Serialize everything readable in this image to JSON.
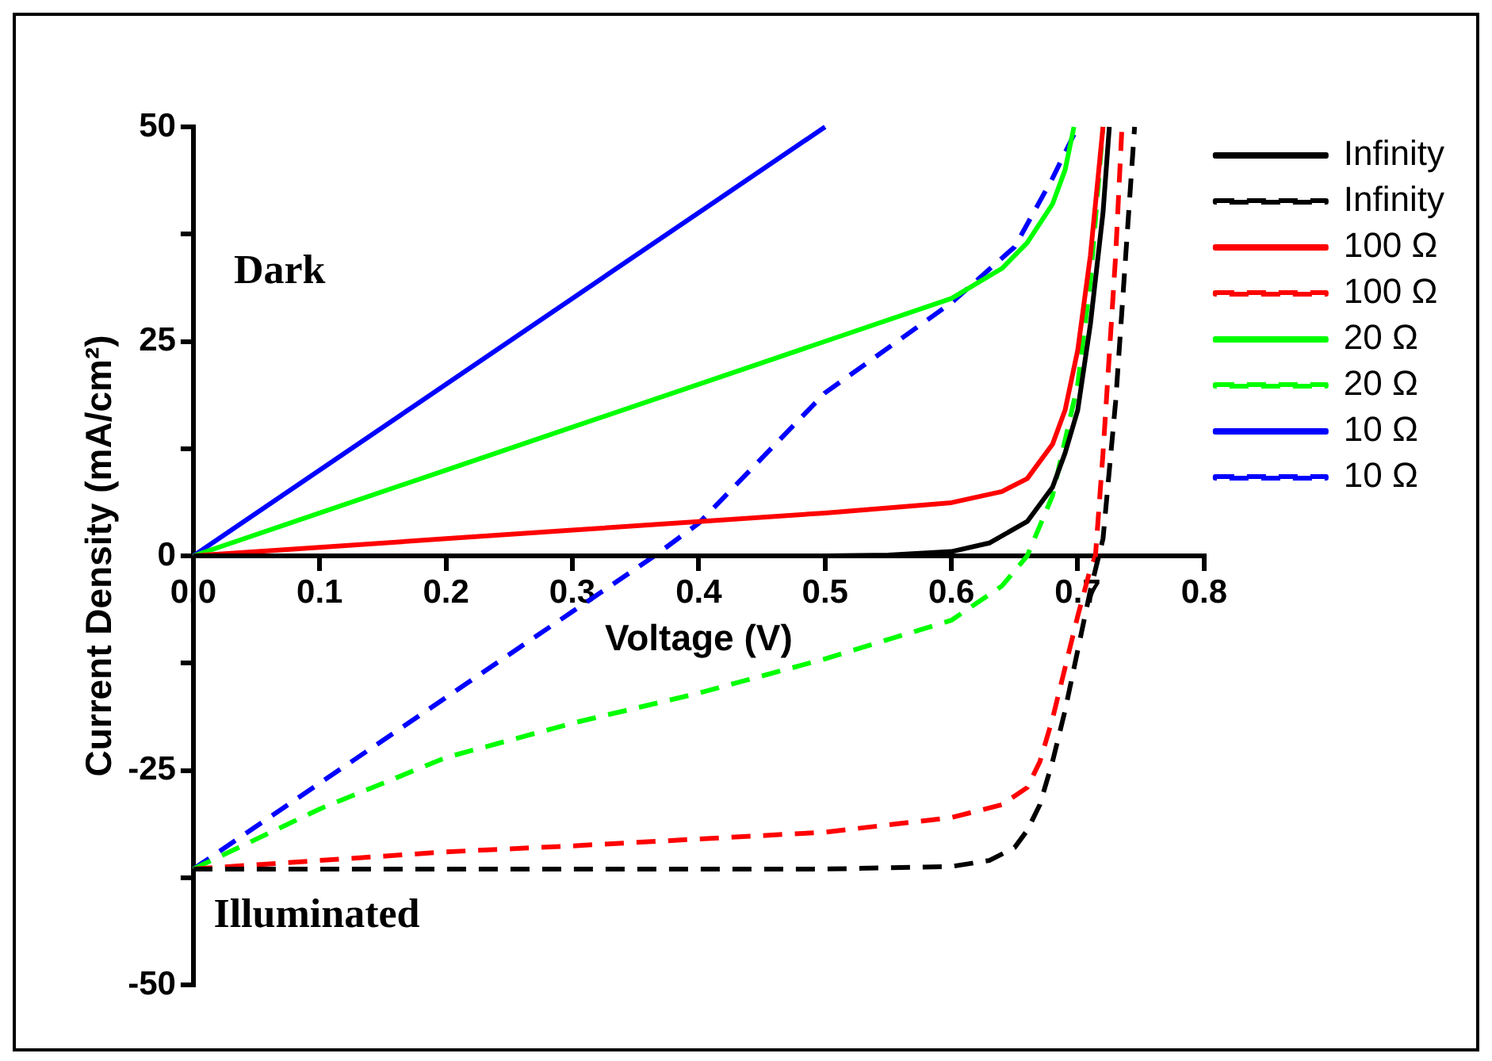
{
  "chart_data": {
    "type": "line",
    "xlabel": "Voltage (V)",
    "ylabel": "Current Density (mA/cm²)",
    "annotations": [
      "Dark",
      "Illuminated"
    ],
    "xlim": [
      0,
      0.8
    ],
    "ylim": [
      -50,
      50
    ],
    "xticks": [
      {
        "value": 0,
        "label": "0.0"
      },
      0.1,
      0.2,
      0.3,
      0.4,
      0.5,
      0.6,
      0.7,
      0.8
    ],
    "yticks": [
      -50,
      {
        "value": -37.5,
        "label": null
      },
      -25,
      {
        "value": -12.5,
        "label": null
      },
      0,
      {
        "value": 12.5,
        "label": null
      },
      25,
      {
        "value": 37.5,
        "label": null
      },
      50
    ],
    "legend": "top right",
    "marker": "none",
    "series": [
      {
        "name": "Infinity",
        "color": "#000000",
        "line_style": "solid",
        "x": [
          0,
          0.5,
          0.55,
          0.6,
          0.63,
          0.66,
          0.68,
          0.69,
          0.7,
          0.71,
          0.72,
          0.725
        ],
        "values": [
          0,
          0,
          0.1,
          0.5,
          1.5,
          4,
          8,
          12,
          17,
          27,
          40,
          50
        ]
      },
      {
        "name": "Infinity",
        "color": "#000000",
        "line_style": "dashed",
        "x": [
          0,
          0.3,
          0.5,
          0.6,
          0.63,
          0.65,
          0.66,
          0.67,
          0.68,
          0.69,
          0.7,
          0.71,
          0.72,
          0.73,
          0.745
        ],
        "values": [
          -36.5,
          -36.5,
          -36.5,
          -36.2,
          -35.5,
          -34,
          -32,
          -29,
          -24,
          -18,
          -11,
          -4,
          2,
          18,
          50
        ]
      },
      {
        "name": "100 Ω",
        "color": "#ff0000",
        "line_style": "solid",
        "x": [
          0,
          0.1,
          0.2,
          0.3,
          0.4,
          0.5,
          0.6,
          0.64,
          0.66,
          0.68,
          0.69,
          0.7,
          0.71,
          0.72
        ],
        "values": [
          0,
          1,
          2,
          3,
          4,
          5,
          6.2,
          7.5,
          9,
          13,
          17,
          24,
          35,
          50
        ]
      },
      {
        "name": "100 Ω",
        "color": "#ff0000",
        "line_style": "dashed",
        "x": [
          0,
          0.1,
          0.2,
          0.3,
          0.4,
          0.5,
          0.6,
          0.64,
          0.66,
          0.67,
          0.68,
          0.69,
          0.7,
          0.71,
          0.714,
          0.72,
          0.73,
          0.735
        ],
        "values": [
          -36.5,
          -35.5,
          -34.5,
          -33.8,
          -33,
          -32.2,
          -30.5,
          -29,
          -27,
          -24,
          -19,
          -13,
          -7,
          -1.5,
          0,
          12,
          35,
          50
        ]
      },
      {
        "name": "20 Ω",
        "color": "#00ff00",
        "line_style": "solid",
        "x": [
          0,
          0.1,
          0.2,
          0.3,
          0.4,
          0.5,
          0.6,
          0.64,
          0.66,
          0.68,
          0.69,
          0.697
        ],
        "values": [
          0,
          5,
          10,
          15,
          20,
          25,
          30,
          33.5,
          36.5,
          41,
          45,
          50
        ]
      },
      {
        "name": "20 Ω",
        "color": "#00ff00",
        "line_style": "dashed",
        "x": [
          0,
          0.1,
          0.2,
          0.3,
          0.4,
          0.5,
          0.6,
          0.64,
          0.66,
          0.68,
          0.7,
          0.71,
          0.72
        ],
        "values": [
          -36.5,
          -29.5,
          -23.5,
          -19.5,
          -16,
          -12,
          -7.5,
          -3.5,
          0,
          7,
          20,
          32,
          50
        ]
      },
      {
        "name": "10 Ω",
        "color": "#0000ff",
        "line_style": "solid",
        "x": [
          0,
          0.5
        ],
        "values": [
          0,
          50
        ]
      },
      {
        "name": "10 Ω",
        "color": "#0000ff",
        "line_style": "dashed",
        "x": [
          0,
          0.1,
          0.2,
          0.3,
          0.365,
          0.4,
          0.5,
          0.6,
          0.65,
          0.68,
          0.7
        ],
        "values": [
          -36.5,
          -26.5,
          -16.5,
          -6.5,
          0,
          3.8,
          19,
          29.5,
          36,
          44,
          50
        ]
      }
    ]
  }
}
